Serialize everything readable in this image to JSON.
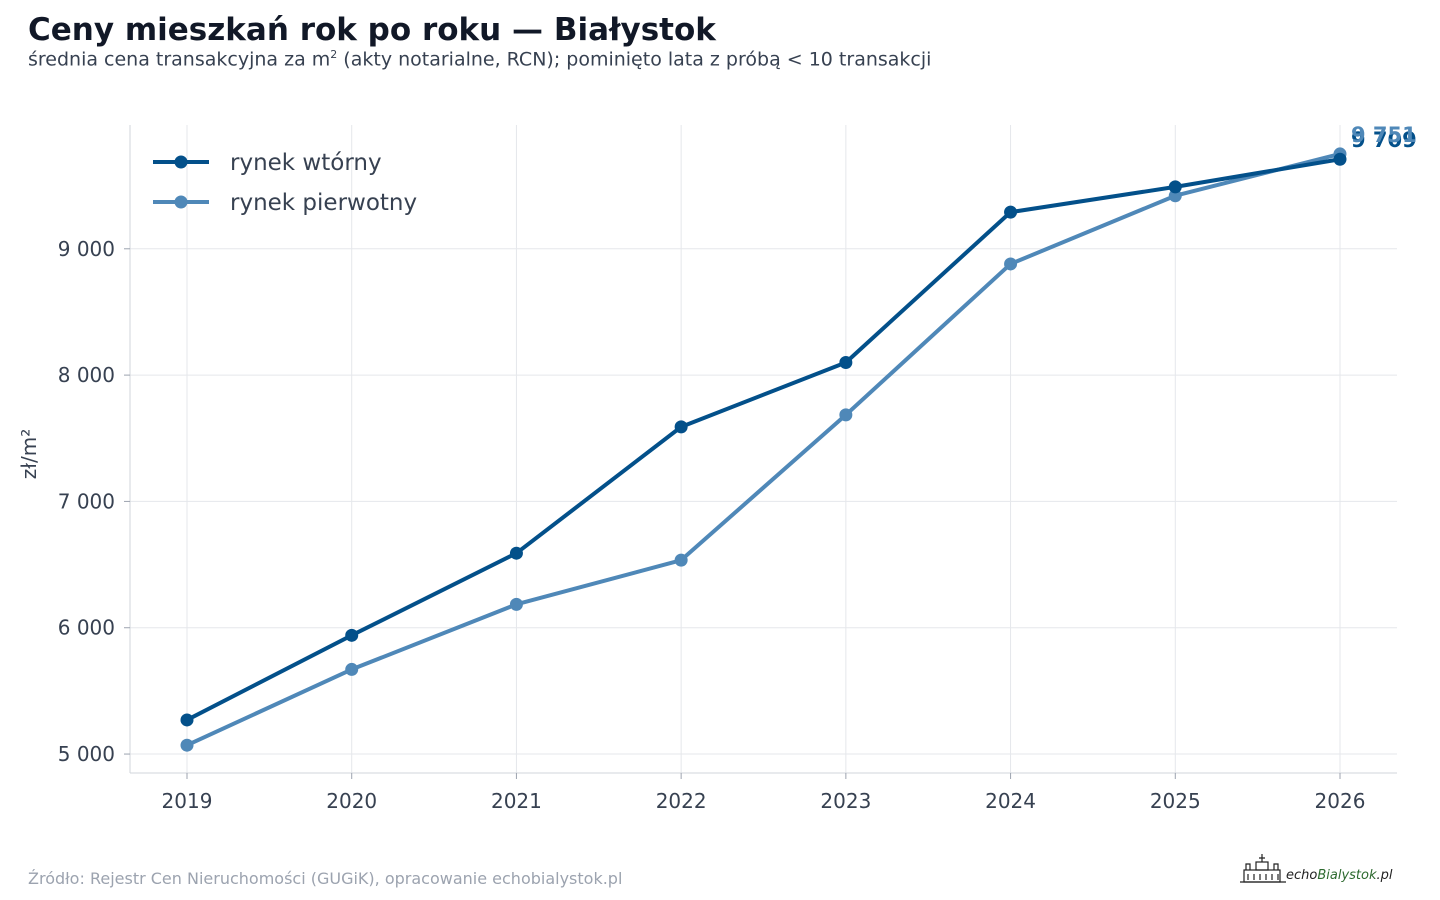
{
  "title": "Ceny mieszkań rok po roku — Białystok",
  "subtitle_before": "średnia cena transakcyjna za m",
  "subtitle_sup": "2",
  "subtitle_after": " (akty notarialne, RCN); pominięto lata z próbą < 10 transakcji",
  "source": "Źródło: Rejestr Cen Nieruchomości (GUGiK), opracowanie echobialystok.pl",
  "logo": {
    "echo": "echo",
    "bialystok": "Bialystok",
    "pl": ".pl"
  },
  "chart_data": {
    "type": "line",
    "x": [
      2019,
      2020,
      2021,
      2022,
      2023,
      2024,
      2025,
      2026
    ],
    "x_tick_labels": [
      "2019",
      "2020",
      "2021",
      "2022",
      "2023",
      "2024",
      "2025",
      "2026"
    ],
    "ylabel": "zł/m²",
    "ylim": [
      4850,
      9980
    ],
    "y_ticks": [
      5000,
      6000,
      7000,
      8000,
      9000
    ],
    "y_tick_labels": [
      "5 000",
      "6 000",
      "7 000",
      "8 000",
      "9 000"
    ],
    "grid": true,
    "legend_position": "top-left",
    "series": [
      {
        "name": "rynek wtórny",
        "color": "#03508a",
        "values": [
          5270,
          5940,
          6590,
          7590,
          8100,
          9290,
          9490,
          9709
        ],
        "end_label": "9 709"
      },
      {
        "name": "rynek pierwotny",
        "color": "#4f88b8",
        "values": [
          5070,
          5670,
          6185,
          6535,
          7685,
          8880,
          9420,
          9751
        ],
        "end_label": "9 751"
      }
    ]
  }
}
